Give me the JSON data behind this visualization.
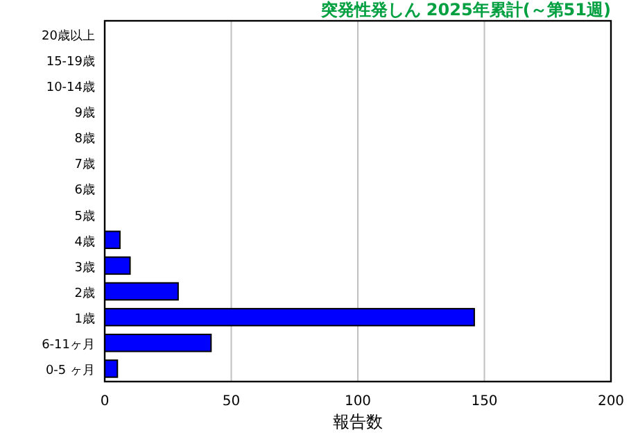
{
  "chart_data": {
    "type": "bar",
    "orientation": "horizontal",
    "title": "突発性発しん 2025年累計(～第51週)",
    "xlabel": "報告数",
    "categories": [
      "20歳以上",
      "15-19歳",
      "10-14歳",
      "9歳",
      "8歳",
      "7歳",
      "6歳",
      "5歳",
      "4歳",
      "3歳",
      "2歳",
      "1歳",
      "6-11ヶ月",
      "0-5 ヶ月"
    ],
    "values": [
      0,
      0,
      0,
      0,
      0,
      0,
      0,
      0,
      6,
      10,
      29,
      146,
      42,
      5
    ],
    "color": "#0000ff",
    "xlim": [
      0,
      200
    ],
    "xticks": [
      0,
      50,
      100,
      150,
      200
    ],
    "grid": "x"
  }
}
